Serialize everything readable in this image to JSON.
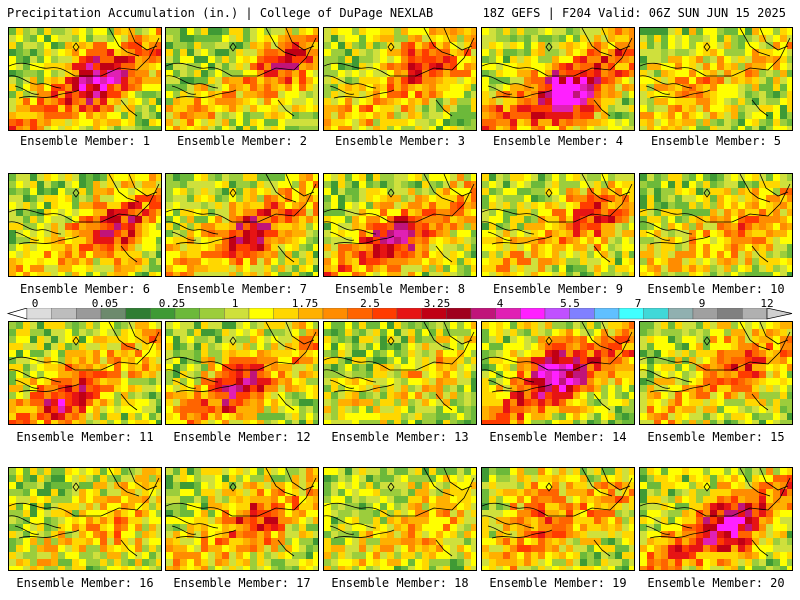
{
  "header": {
    "left": "Precipitation Accumulation (in.) | College of DuPage NEXLAB",
    "right": "18Z GEFS | F204 Valid: 06Z SUN JUN 15 2025"
  },
  "colorbar": {
    "labels": [
      "0",
      "0.05",
      "0.25",
      "1",
      "1.75",
      "2.5",
      "3.25",
      "4",
      "5.5",
      "7",
      "9",
      "12"
    ],
    "colors": [
      "#dcdcdc",
      "#bdbdbd",
      "#9a9a9a",
      "#6d8a6d",
      "#2f7d32",
      "#3f9a35",
      "#6cb93a",
      "#9ccd3c",
      "#cfe03c",
      "#ffff00",
      "#ffd700",
      "#ffb000",
      "#ff8c00",
      "#ff6400",
      "#ff3c00",
      "#e61414",
      "#c00014",
      "#a0001e",
      "#c0147a",
      "#e020b4",
      "#ff20ff",
      "#c050ff",
      "#8080ff",
      "#60c0ff",
      "#40ffff",
      "#40d8d8",
      "#90b0b0",
      "#a0a0a0",
      "#808080",
      "#b0b0b0"
    ]
  },
  "panels": [
    {
      "label": "Ensemble Member: 1",
      "wet": 0.7,
      "core": [
        0.55,
        0.45
      ]
    },
    {
      "label": "Ensemble Member: 2",
      "wet": 0.45,
      "core": [
        0.75,
        0.35
      ]
    },
    {
      "label": "Ensemble Member: 3",
      "wet": 0.5,
      "core": [
        0.6,
        0.3
      ]
    },
    {
      "label": "Ensemble Member: 4",
      "wet": 0.8,
      "core": [
        0.55,
        0.65
      ]
    },
    {
      "label": "Ensemble Member: 5",
      "wet": 0.35,
      "core": [
        0.3,
        0.45
      ]
    },
    {
      "label": "Ensemble Member: 6",
      "wet": 0.55,
      "core": [
        0.7,
        0.55
      ]
    },
    {
      "label": "Ensemble Member: 7",
      "wet": 0.55,
      "core": [
        0.55,
        0.55
      ]
    },
    {
      "label": "Ensemble Member: 8",
      "wet": 0.6,
      "core": [
        0.45,
        0.6
      ]
    },
    {
      "label": "Ensemble Member: 9",
      "wet": 0.45,
      "core": [
        0.7,
        0.4
      ]
    },
    {
      "label": "Ensemble Member: 10",
      "wet": 0.35,
      "core": [
        0.7,
        0.6
      ]
    },
    {
      "label": "Ensemble Member: 11",
      "wet": 0.55,
      "core": [
        0.35,
        0.7
      ]
    },
    {
      "label": "Ensemble Member: 12",
      "wet": 0.55,
      "core": [
        0.45,
        0.6
      ]
    },
    {
      "label": "Ensemble Member: 13",
      "wet": 0.2,
      "core": [
        0.7,
        0.5
      ]
    },
    {
      "label": "Ensemble Member: 14",
      "wet": 0.75,
      "core": [
        0.45,
        0.4
      ]
    },
    {
      "label": "Ensemble Member: 15",
      "wet": 0.45,
      "core": [
        0.6,
        0.35
      ]
    },
    {
      "label": "Ensemble Member: 16",
      "wet": 0.3,
      "core": [
        0.7,
        0.55
      ]
    },
    {
      "label": "Ensemble Member: 17",
      "wet": 0.45,
      "core": [
        0.55,
        0.45
      ]
    },
    {
      "label": "Ensemble Member: 18",
      "wet": 0.25,
      "core": [
        0.7,
        0.6
      ]
    },
    {
      "label": "Ensemble Member: 19",
      "wet": 0.5,
      "core": [
        0.35,
        0.3
      ]
    },
    {
      "label": "Ensemble Member: 20",
      "wet": 0.7,
      "core": [
        0.55,
        0.55
      ]
    }
  ]
}
